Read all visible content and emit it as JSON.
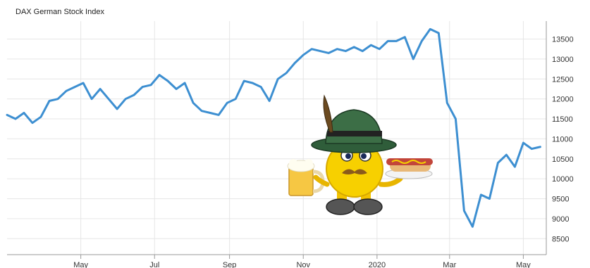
{
  "chart_data": {
    "type": "line",
    "title": "DAX German Stock Index",
    "xlabel": "",
    "ylabel": "",
    "x_tick_labels": [
      "May",
      "Jul",
      "Sep",
      "Nov",
      "2020",
      "Mar",
      "May"
    ],
    "y_ticks": [
      8500,
      9000,
      9500,
      10000,
      10500,
      11000,
      11500,
      12000,
      12500,
      13000,
      13500
    ],
    "ylim": [
      8100,
      13950
    ],
    "grid": true,
    "y_axis_position": "right",
    "series": [
      {
        "color": "#3d8fd1",
        "x": [
          "2019-03-01",
          "2019-03-08",
          "2019-03-15",
          "2019-03-22",
          "2019-03-29",
          "2019-04-05",
          "2019-04-12",
          "2019-04-19",
          "2019-04-26",
          "2019-05-03",
          "2019-05-10",
          "2019-05-17",
          "2019-05-24",
          "2019-05-31",
          "2019-06-07",
          "2019-06-14",
          "2019-06-21",
          "2019-06-28",
          "2019-07-05",
          "2019-07-12",
          "2019-07-19",
          "2019-07-26",
          "2019-08-02",
          "2019-08-09",
          "2019-08-16",
          "2019-08-23",
          "2019-08-30",
          "2019-09-06",
          "2019-09-13",
          "2019-09-20",
          "2019-09-27",
          "2019-10-04",
          "2019-10-11",
          "2019-10-18",
          "2019-10-25",
          "2019-11-01",
          "2019-11-08",
          "2019-11-15",
          "2019-11-22",
          "2019-11-29",
          "2019-12-06",
          "2019-12-13",
          "2019-12-20",
          "2019-12-27",
          "2020-01-03",
          "2020-01-10",
          "2020-01-17",
          "2020-01-24",
          "2020-01-31",
          "2020-02-07",
          "2020-02-14",
          "2020-02-21",
          "2020-02-28",
          "2020-03-06",
          "2020-03-13",
          "2020-03-20",
          "2020-03-27",
          "2020-04-03",
          "2020-04-10",
          "2020-04-17",
          "2020-04-24",
          "2020-05-01",
          "2020-05-08",
          "2020-05-15"
        ],
        "values": [
          11600,
          11500,
          11650,
          11400,
          11550,
          11950,
          12000,
          12200,
          12300,
          12400,
          12000,
          12250,
          12000,
          11750,
          12000,
          12100,
          12300,
          12350,
          12600,
          12450,
          12250,
          12400,
          11900,
          11700,
          11650,
          11600,
          11900,
          12000,
          12450,
          12400,
          12300,
          11950,
          12500,
          12650,
          12900,
          13100,
          13250,
          13200,
          13150,
          13250,
          13200,
          13300,
          13200,
          13350,
          13250,
          13450,
          13450,
          13550,
          13000,
          13450,
          13750,
          13650,
          11900,
          11500,
          9200,
          8800,
          9600,
          9500,
          10400,
          10600,
          10300,
          10900,
          10750,
          10800
        ]
      }
    ]
  },
  "overlay": {
    "mascot": "bavarian-smiley-with-beer-and-sausage"
  }
}
